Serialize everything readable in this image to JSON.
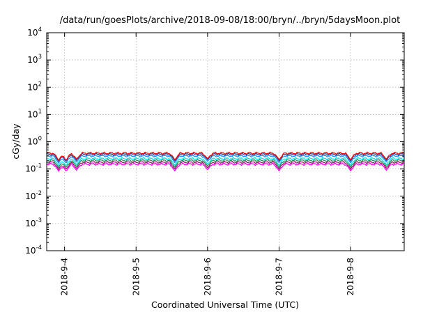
{
  "chart_data": {
    "type": "line",
    "title": "/data/run/goesPlots/archive/2018-09-08/18:00/bryn/../bryn/5daysMoon.plot",
    "xlabel": "Coordinated Universal Time (UTC)",
    "ylabel": "cGy/day",
    "y_scale": "log",
    "ylim": [
      0.0001,
      10000
    ],
    "y_ticks": [
      {
        "base": "10",
        "exp": "-4"
      },
      {
        "base": "10",
        "exp": "-3"
      },
      {
        "base": "10",
        "exp": "-2"
      },
      {
        "base": "10",
        "exp": "-1"
      },
      {
        "base": "10",
        "exp": "0"
      },
      {
        "base": "10",
        "exp": "1"
      },
      {
        "base": "10",
        "exp": "2"
      },
      {
        "base": "10",
        "exp": "3"
      },
      {
        "base": "10",
        "exp": "4"
      }
    ],
    "xlim": [
      "2018-09-03T18:00",
      "2018-09-08T18:00"
    ],
    "x_ticks": [
      "2018-9-4",
      "2018-9-5",
      "2018-9-6",
      "2018-9-7",
      "2018-9-8"
    ],
    "grid": true,
    "dips": [
      {
        "t": "2018-09-03T22:00",
        "magenta": 0.082
      },
      {
        "t": "2018-09-04T00:30",
        "magenta": 0.08
      },
      {
        "t": "2018-09-04T04:00",
        "magenta": 0.09
      },
      {
        "t": "2018-09-05T13:00",
        "magenta": 0.085
      },
      {
        "t": "2018-09-06T00:00",
        "magenta": 0.095
      },
      {
        "t": "2018-09-07T00:00",
        "magenta": 0.085
      },
      {
        "t": "2018-09-08T00:00",
        "magenta": 0.085
      },
      {
        "t": "2018-09-08T12:00",
        "magenta": 0.09
      }
    ],
    "series": [
      {
        "color": "#ff0000",
        "base": 0.38
      },
      {
        "color": "#1e4ea8",
        "base": 0.345
      },
      {
        "color": "#1e90ff",
        "base": 0.3
      },
      {
        "color": "#00e5ee",
        "base": 0.24
      },
      {
        "color": "#2e8b57",
        "base": 0.205
      },
      {
        "color": "#9b1d6b",
        "base": 0.175
      },
      {
        "color": "#ff00ff",
        "base": 0.15
      }
    ]
  }
}
